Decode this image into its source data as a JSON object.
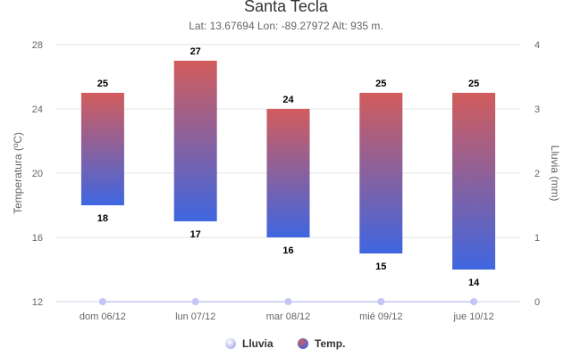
{
  "colors": {
    "temp_top": "#d25c5c",
    "temp_bottom": "#3f66e0",
    "rain": "#c6c6f5",
    "grid": "#e6e6e6",
    "axis_line": "#ccd6eb"
  },
  "chart_data": {
    "type": "columnrange",
    "title": "Santa Tecla",
    "subtitle": "Lat: 13.67694 Lon: -89.27972 Alt: 935 m.",
    "categories": [
      "dom 06/12",
      "lun 07/12",
      "mar 08/12",
      "mié 09/12",
      "jue 10/12"
    ],
    "y_left": {
      "label": "Temperatura (ºC)",
      "range": [
        12,
        28
      ],
      "ticks": [
        12,
        16,
        20,
        24,
        28
      ]
    },
    "y_right": {
      "label": "Lluvia (mm)",
      "range": [
        0,
        4
      ],
      "ticks": [
        0,
        1,
        2,
        3,
        4
      ]
    },
    "series": [
      {
        "name": "Temp.",
        "type": "columnrange",
        "low": [
          18,
          17,
          16,
          15,
          14
        ],
        "high": [
          25,
          27,
          24,
          25,
          25
        ]
      },
      {
        "name": "Lluvia",
        "type": "line",
        "values": [
          0,
          0,
          0,
          0,
          0
        ]
      }
    ],
    "legend": {
      "position": "bottom-center",
      "items": [
        "Lluvia",
        "Temp."
      ]
    },
    "grid": true
  }
}
